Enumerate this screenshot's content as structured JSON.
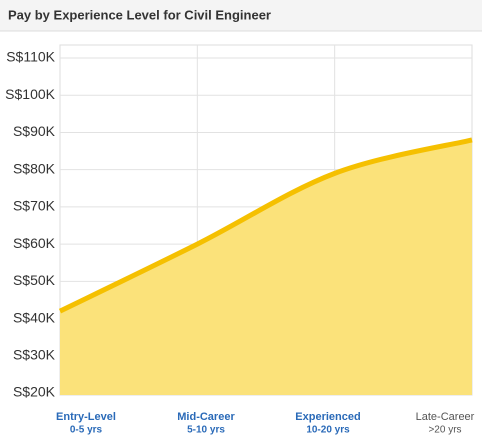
{
  "chart_data": {
    "type": "area",
    "title": "Pay by Experience Level for Civil Engineer",
    "categories": [
      "Entry-Level",
      "Mid-Career",
      "Experienced",
      "Late-Career"
    ],
    "category_ranges": [
      "0-5 yrs",
      "5-10 yrs",
      "10-20 yrs",
      ">20 yrs"
    ],
    "category_colors": [
      "#2a6ab8",
      "#2a6ab8",
      "#2a6ab8",
      "#555555"
    ],
    "values": [
      42000,
      60000,
      79000,
      88000
    ],
    "line_color": "#f5c000",
    "fill_color": "#fbe27a",
    "ylim": [
      20000,
      110000
    ],
    "yticks": [
      {
        "value": 20000,
        "label": "S$20K"
      },
      {
        "value": 30000,
        "label": "S$30K"
      },
      {
        "value": 40000,
        "label": "S$40K"
      },
      {
        "value": 50000,
        "label": "S$50K"
      },
      {
        "value": 60000,
        "label": "S$60K"
      },
      {
        "value": 70000,
        "label": "S$70K"
      },
      {
        "value": 80000,
        "label": "S$80K"
      },
      {
        "value": 90000,
        "label": "S$90K"
      },
      {
        "value": 100000,
        "label": "S$100K"
      },
      {
        "value": 110000,
        "label": "S$110K"
      }
    ],
    "grid": true
  }
}
